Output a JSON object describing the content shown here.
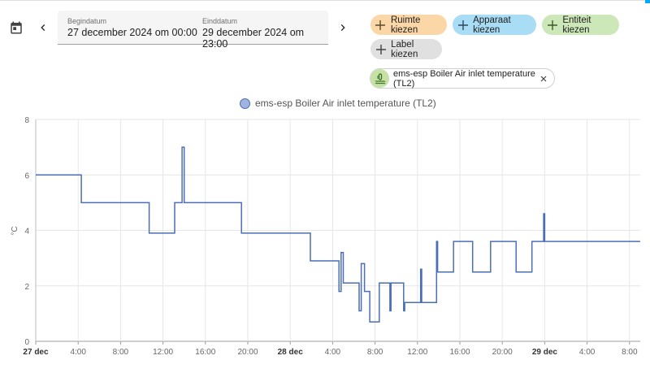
{
  "header": {
    "start_label": "Begindatum",
    "start_value": "27 december 2024 om 00:00",
    "end_label": "Einddatum",
    "end_value": "29 december 2024 om 23:00"
  },
  "targets": {
    "area": {
      "label": "Ruimte kiezen",
      "color": "#fbd6a6"
    },
    "device": {
      "label": "Apparaat kiezen",
      "color": "#a9dcf5"
    },
    "entity": {
      "label": "Entiteit kiezen",
      "color": "#cde8b8"
    },
    "label": {
      "label": "Label kiezen",
      "color": "#e0e0e0"
    }
  },
  "selected_entity": {
    "name": "ems-esp Boiler Air inlet temperature (TL2)",
    "icon": "thermometer-water-icon"
  },
  "chart_data": {
    "type": "line",
    "legend": "ems-esp Boiler Air inlet temperature (TL2)",
    "ylabel": "°C",
    "ylim": [
      0,
      8
    ],
    "yticks": [
      "0",
      "2",
      "4",
      "6",
      "8"
    ],
    "xlim": [
      0,
      71
    ],
    "xticks": [
      {
        "h": 0,
        "label": "27 dec",
        "bold": true
      },
      {
        "h": 4,
        "label": "4:00"
      },
      {
        "h": 8,
        "label": "8:00"
      },
      {
        "h": 12,
        "label": "12:00"
      },
      {
        "h": 16,
        "label": "16:00"
      },
      {
        "h": 20,
        "label": "20:00"
      },
      {
        "h": 24,
        "label": "28 dec",
        "bold": true
      },
      {
        "h": 28,
        "label": "4:00"
      },
      {
        "h": 32,
        "label": "8:00"
      },
      {
        "h": 36,
        "label": "12:00"
      },
      {
        "h": 40,
        "label": "16:00"
      },
      {
        "h": 44,
        "label": "20:00"
      },
      {
        "h": 48,
        "label": "29 dec",
        "bold": true
      },
      {
        "h": 52,
        "label": "4:00"
      },
      {
        "h": 56,
        "label": "8:00"
      }
    ],
    "color": "#4a6fb5",
    "series": [
      {
        "x": [
          0,
          4.3,
          4.3,
          10.7,
          10.7,
          13.1,
          13.1,
          13.8,
          13.8,
          14.0,
          14.0,
          19.4,
          19.4,
          25.9,
          25.9,
          28.6,
          28.6,
          28.8,
          28.8,
          29.0,
          29.0,
          30.5,
          30.5,
          30.7,
          30.7,
          31.0,
          31.0,
          31.5,
          31.5,
          32.4,
          32.4,
          33.4,
          33.4,
          33.5,
          33.5,
          34.7,
          34.7,
          34.8,
          34.8,
          36.3,
          36.3,
          36.4,
          36.4,
          37.8,
          37.8,
          37.9,
          37.9,
          39.4,
          39.4,
          41.2,
          41.2,
          42.9,
          42.9,
          45.3,
          45.3,
          46.8,
          46.8,
          47.9,
          47.9,
          48.0,
          48.0,
          48.2,
          48.2,
          57.0
        ],
        "y": [
          6.0,
          6.0,
          5.0,
          5.0,
          3.9,
          3.9,
          5.0,
          5.0,
          7.0,
          7.0,
          5.0,
          5.0,
          3.9,
          3.9,
          2.9,
          2.9,
          1.8,
          1.8,
          3.2,
          3.2,
          2.1,
          2.1,
          1.1,
          1.1,
          2.8,
          2.8,
          1.8,
          1.8,
          0.7,
          0.7,
          2.1,
          2.1,
          1.1,
          1.1,
          2.1,
          2.1,
          1.1,
          1.1,
          1.4,
          1.4,
          2.6,
          2.6,
          1.4,
          1.4,
          3.6,
          3.6,
          2.5,
          2.5,
          3.6,
          3.6,
          2.5,
          2.5,
          3.6,
          3.6,
          2.5,
          2.5,
          3.6,
          3.6,
          4.6,
          4.6,
          3.6,
          3.6,
          3.6,
          3.6
        ]
      }
    ]
  }
}
